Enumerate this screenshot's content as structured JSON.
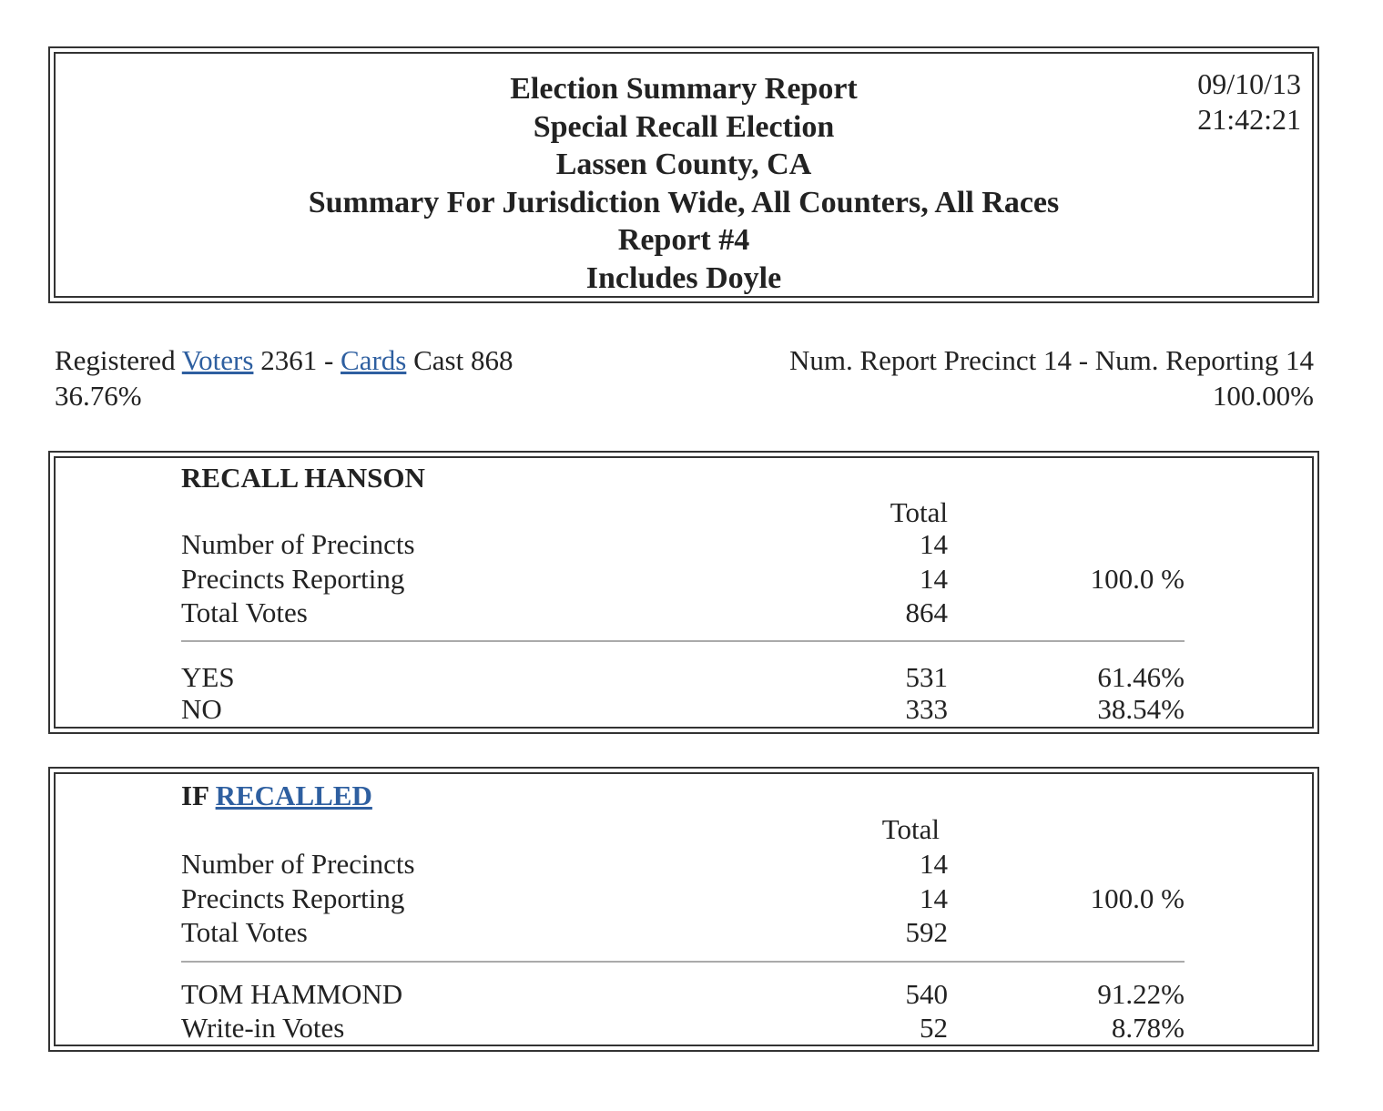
{
  "header": {
    "title_lines": [
      "Election Summary Report",
      "Special Recall Election",
      "Lassen County, CA",
      "Summary For Jurisdiction Wide, All Counters, All Races",
      "Report #4",
      "Includes Doyle"
    ],
    "date": "09/10/13",
    "time": "21:42:21"
  },
  "summary": {
    "registered_label": "Registered",
    "voters_link": "Voters",
    "registered_value": "2361 -",
    "cards_link": "Cards",
    "cast_text": "Cast 868",
    "turnout_pct": "36.76%",
    "precinct_line": "Num. Report Precinct 14 - Num. Reporting 14",
    "precinct_pct": "100.00%"
  },
  "races": [
    {
      "title": "RECALL HANSON",
      "title_prefix": "",
      "title_link": "",
      "total_header": "Total",
      "stats": [
        {
          "label": "Number of Precincts",
          "value": "14",
          "pct": ""
        },
        {
          "label": "Precincts Reporting",
          "value": "14",
          "pct": "100.0 %"
        },
        {
          "label": "Total Votes",
          "value": "864",
          "pct": ""
        }
      ],
      "choices": [
        {
          "label": "YES",
          "value": "531",
          "pct": "61.46%"
        },
        {
          "label": "NO",
          "value": "333",
          "pct": "38.54%"
        }
      ]
    },
    {
      "title": "",
      "title_prefix": "IF",
      "title_link": "RECALLED",
      "total_header": "Total",
      "stats": [
        {
          "label": "Number of Precincts",
          "value": "14",
          "pct": ""
        },
        {
          "label": "Precincts Reporting",
          "value": "14",
          "pct": "100.0 %"
        },
        {
          "label": "Total Votes",
          "value": "592",
          "pct": ""
        }
      ],
      "choices": [
        {
          "label": "TOM HAMMOND",
          "value": "540",
          "pct": "91.22%"
        },
        {
          "label": "Write-in Votes",
          "value": "52",
          "pct": "8.78%"
        }
      ]
    }
  ],
  "colors": {
    "link": "#2e5fa0",
    "text": "#222222",
    "border": "#333333"
  }
}
